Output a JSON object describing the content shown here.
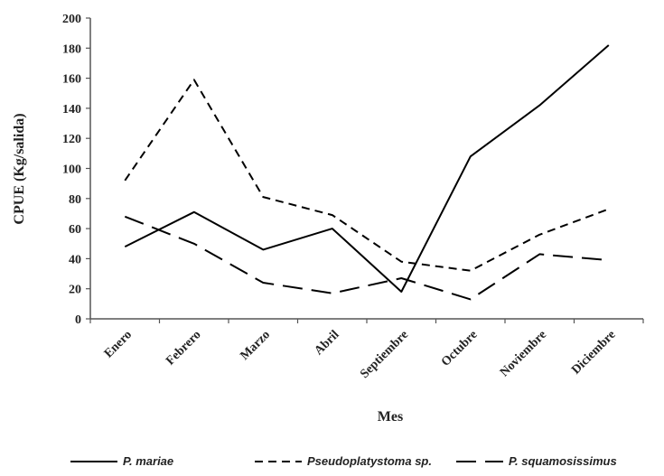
{
  "chart_data": {
    "type": "line",
    "title": "",
    "xlabel": "Mes",
    "ylabel": "CPUE (Kg/salida)",
    "categories": [
      "Enero",
      "Febrero",
      "Marzo",
      "Abril",
      "Septiembre",
      "Octubre",
      "Noviembre",
      "Diciembre"
    ],
    "ylim": [
      0,
      200
    ],
    "yticks": [
      0,
      20,
      40,
      60,
      80,
      100,
      120,
      140,
      160,
      180,
      200
    ],
    "grid": false,
    "legend": "bottom",
    "series": [
      {
        "name": "P. mariae",
        "style": "solid",
        "color": "#000000",
        "values": [
          48,
          71,
          46,
          60,
          18,
          108,
          142,
          182
        ]
      },
      {
        "name": "Pseudoplatystoma sp.",
        "style": "short-dash",
        "color": "#000000",
        "values": [
          92,
          159,
          81,
          69,
          38,
          32,
          56,
          73
        ]
      },
      {
        "name": "P. squamosissimus",
        "style": "long-dash",
        "color": "#000000",
        "values": [
          68,
          50,
          24,
          17,
          27,
          13,
          43,
          39
        ]
      }
    ]
  }
}
